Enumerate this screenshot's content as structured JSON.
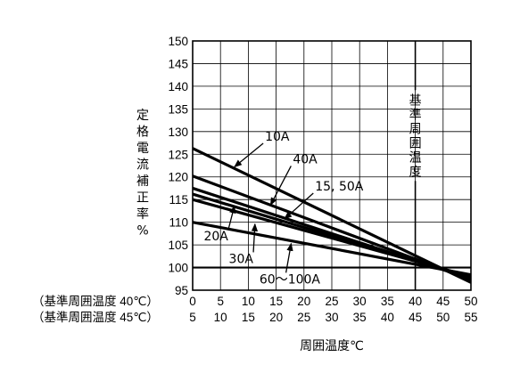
{
  "chart_data": {
    "type": "line",
    "ylabel": [
      "定",
      "格",
      "電",
      "流",
      "補",
      "正",
      "率",
      "%"
    ],
    "xlabel": "周囲温度℃",
    "x_axis_rows": [
      {
        "caption": "（基準周囲温度 40℃）",
        "ticks": [
          "0",
          "5",
          "10",
          "15",
          "20",
          "25",
          "30",
          "35",
          "40",
          "45",
          "50"
        ]
      },
      {
        "caption": "（基準周囲温度 45℃）",
        "ticks": [
          "5",
          "10",
          "15",
          "20",
          "25",
          "30",
          "35",
          "40",
          "45",
          "50",
          "55"
        ]
      }
    ],
    "xlim": [
      0,
      50
    ],
    "ylim": [
      95,
      150
    ],
    "yticks": [
      "95",
      "100",
      "105",
      "110",
      "115",
      "120",
      "125",
      "130",
      "135",
      "140",
      "145",
      "150"
    ],
    "grid": true,
    "reference_line": {
      "x": 40,
      "label": [
        "基",
        "準",
        "周",
        "囲",
        "温",
        "度"
      ]
    },
    "series": [
      {
        "name": "10A",
        "x": [
          0,
          50
        ],
        "y": [
          126.3,
          96.7
        ]
      },
      {
        "name": "40A",
        "x": [
          0,
          50
        ],
        "y": [
          120.2,
          97.3
        ]
      },
      {
        "name": "15, 50A",
        "x": [
          0,
          50
        ],
        "y": [
          117.5,
          97.5
        ]
      },
      {
        "name": "20A",
        "x": [
          0,
          50
        ],
        "y": [
          116.2,
          97.8
        ]
      },
      {
        "name": "30A",
        "x": [
          0,
          50
        ],
        "y": [
          115.0,
          98.0
        ]
      },
      {
        "name": "60～100A",
        "x": [
          0,
          50
        ],
        "y": [
          110.0,
          98.4
        ]
      }
    ],
    "annotations": [
      {
        "text": "10A",
        "x": 13,
        "y": 128,
        "arrow_to": [
          7.5,
          122.2
        ]
      },
      {
        "text": "40A",
        "x": 18,
        "y": 123,
        "arrow_to": [
          14,
          113.8
        ]
      },
      {
        "text": "15, 50A",
        "x": 22,
        "y": 117,
        "arrow_to": [
          16.5,
          110.7
        ]
      },
      {
        "text": "20A",
        "x": 2,
        "y": 106,
        "arrow_to": [
          7.5,
          113.6
        ]
      },
      {
        "text": "30A",
        "x": 6.5,
        "y": 101,
        "arrow_to": [
          11.2,
          109.6
        ]
      },
      {
        "text": "60～100A",
        "x": 12,
        "y": 96.5,
        "arrow_to": [
          17.7,
          105.3
        ]
      }
    ]
  }
}
